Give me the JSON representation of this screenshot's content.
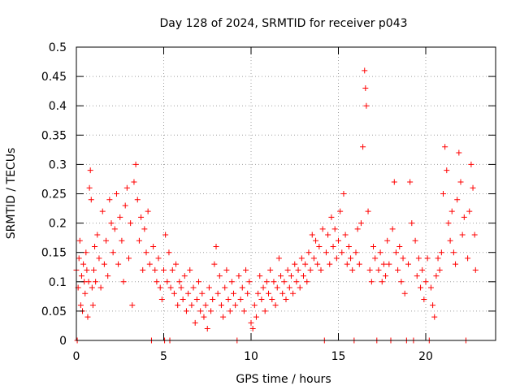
{
  "chart_data": {
    "type": "scatter",
    "title": "Day 128 of 2024, SRMTID for receiver p043",
    "xlabel": "GPS time / hours",
    "ylabel": "SRMTID / TECUs",
    "xlim": [
      0,
      24
    ],
    "ylim": [
      0,
      0.5
    ],
    "x_ticks": [
      0,
      5,
      10,
      15,
      20
    ],
    "x_tick_labels": [
      "0",
      "5",
      "10",
      "15",
      "20"
    ],
    "y_ticks": [
      0,
      0.05,
      0.1,
      0.15,
      0.2,
      0.25,
      0.3,
      0.35,
      0.4,
      0.45,
      0.5
    ],
    "y_tick_labels": [
      "0",
      "0.05",
      "0.1",
      "0.15",
      "0.2",
      "0.25",
      "0.3",
      "0.35",
      "0.4",
      "0.45",
      "0.5"
    ],
    "grid": true,
    "marker": "plus",
    "color": "#ff0000",
    "series": [
      {
        "name": "SRMTID",
        "points": [
          [
            0.0,
            0.12
          ],
          [
            0.05,
            0.0
          ],
          [
            0.1,
            0.09
          ],
          [
            0.15,
            0.14
          ],
          [
            0.2,
            0.17
          ],
          [
            0.25,
            0.06
          ],
          [
            0.3,
            0.11
          ],
          [
            0.35,
            0.05
          ],
          [
            0.4,
            0.13
          ],
          [
            0.45,
            0.1
          ],
          [
            0.5,
            0.08
          ],
          [
            0.55,
            0.15
          ],
          [
            0.6,
            0.12
          ],
          [
            0.65,
            0.04
          ],
          [
            0.7,
            0.1
          ],
          [
            0.75,
            0.26
          ],
          [
            0.8,
            0.29
          ],
          [
            0.85,
            0.24
          ],
          [
            0.9,
            0.09
          ],
          [
            0.95,
            0.06
          ],
          [
            1.0,
            0.12
          ],
          [
            1.05,
            0.16
          ],
          [
            1.1,
            0.1
          ],
          [
            1.2,
            0.18
          ],
          [
            1.3,
            0.14
          ],
          [
            1.4,
            0.09
          ],
          [
            1.5,
            0.22
          ],
          [
            1.6,
            0.13
          ],
          [
            1.7,
            0.17
          ],
          [
            1.8,
            0.11
          ],
          [
            1.9,
            0.24
          ],
          [
            2.0,
            0.2
          ],
          [
            2.1,
            0.15
          ],
          [
            2.2,
            0.19
          ],
          [
            2.3,
            0.25
          ],
          [
            2.4,
            0.13
          ],
          [
            2.5,
            0.21
          ],
          [
            2.6,
            0.17
          ],
          [
            2.7,
            0.1
          ],
          [
            2.8,
            0.23
          ],
          [
            2.9,
            0.26
          ],
          [
            3.0,
            0.14
          ],
          [
            3.1,
            0.2
          ],
          [
            3.2,
            0.06
          ],
          [
            3.3,
            0.27
          ],
          [
            3.4,
            0.3
          ],
          [
            3.5,
            0.24
          ],
          [
            3.6,
            0.17
          ],
          [
            3.7,
            0.21
          ],
          [
            3.8,
            0.12
          ],
          [
            3.9,
            0.19
          ],
          [
            4.0,
            0.15
          ],
          [
            4.1,
            0.22
          ],
          [
            4.2,
            0.13
          ],
          [
            4.3,
            0.0
          ],
          [
            4.4,
            0.16
          ],
          [
            4.5,
            0.12
          ],
          [
            4.6,
            0.1
          ],
          [
            4.7,
            0.14
          ],
          [
            4.8,
            0.09
          ],
          [
            4.9,
            0.07
          ],
          [
            5.0,
            0.12
          ],
          [
            5.05,
            0.0
          ],
          [
            5.1,
            0.18
          ],
          [
            5.2,
            0.1
          ],
          [
            5.3,
            0.15
          ],
          [
            5.35,
            0.0
          ],
          [
            5.4,
            0.09
          ],
          [
            5.5,
            0.12
          ],
          [
            5.6,
            0.08
          ],
          [
            5.7,
            0.13
          ],
          [
            5.8,
            0.06
          ],
          [
            5.9,
            0.1
          ],
          [
            6.0,
            0.09
          ],
          [
            6.1,
            0.07
          ],
          [
            6.2,
            0.11
          ],
          [
            6.3,
            0.05
          ],
          [
            6.4,
            0.08
          ],
          [
            6.5,
            0.12
          ],
          [
            6.6,
            0.06
          ],
          [
            6.7,
            0.09
          ],
          [
            6.8,
            0.03
          ],
          [
            6.9,
            0.07
          ],
          [
            7.0,
            0.1
          ],
          [
            7.1,
            0.05
          ],
          [
            7.2,
            0.08
          ],
          [
            7.3,
            0.04
          ],
          [
            7.4,
            0.06
          ],
          [
            7.5,
            0.02
          ],
          [
            7.6,
            0.09
          ],
          [
            7.7,
            0.05
          ],
          [
            7.8,
            0.07
          ],
          [
            7.9,
            0.13
          ],
          [
            8.0,
            0.16
          ],
          [
            8.1,
            0.08
          ],
          [
            8.2,
            0.11
          ],
          [
            8.3,
            0.06
          ],
          [
            8.4,
            0.04
          ],
          [
            8.5,
            0.09
          ],
          [
            8.6,
            0.12
          ],
          [
            8.7,
            0.07
          ],
          [
            8.8,
            0.05
          ],
          [
            8.9,
            0.1
          ],
          [
            9.0,
            0.08
          ],
          [
            9.1,
            0.06
          ],
          [
            9.2,
            0.0
          ],
          [
            9.3,
            0.11
          ],
          [
            9.4,
            0.07
          ],
          [
            9.5,
            0.09
          ],
          [
            9.6,
            0.05
          ],
          [
            9.7,
            0.12
          ],
          [
            9.8,
            0.08
          ],
          [
            9.9,
            0.1
          ],
          [
            10.0,
            0.03
          ],
          [
            10.1,
            0.02
          ],
          [
            10.2,
            0.06
          ],
          [
            10.3,
            0.04
          ],
          [
            10.4,
            0.08
          ],
          [
            10.5,
            0.11
          ],
          [
            10.6,
            0.07
          ],
          [
            10.7,
            0.09
          ],
          [
            10.8,
            0.05
          ],
          [
            10.9,
            0.1
          ],
          [
            11.0,
            0.08
          ],
          [
            11.1,
            0.12
          ],
          [
            11.2,
            0.07
          ],
          [
            11.3,
            0.1
          ],
          [
            11.4,
            0.06
          ],
          [
            11.5,
            0.09
          ],
          [
            11.6,
            0.14
          ],
          [
            11.7,
            0.11
          ],
          [
            11.8,
            0.08
          ],
          [
            11.9,
            0.1
          ],
          [
            12.0,
            0.07
          ],
          [
            12.1,
            0.12
          ],
          [
            12.2,
            0.09
          ],
          [
            12.3,
            0.11
          ],
          [
            12.4,
            0.08
          ],
          [
            12.5,
            0.13
          ],
          [
            12.6,
            0.1
          ],
          [
            12.7,
            0.12
          ],
          [
            12.8,
            0.09
          ],
          [
            12.9,
            0.14
          ],
          [
            13.0,
            0.11
          ],
          [
            13.1,
            0.13
          ],
          [
            13.2,
            0.1
          ],
          [
            13.3,
            0.15
          ],
          [
            13.4,
            0.12
          ],
          [
            13.5,
            0.18
          ],
          [
            13.6,
            0.14
          ],
          [
            13.7,
            0.17
          ],
          [
            13.8,
            0.13
          ],
          [
            13.9,
            0.16
          ],
          [
            14.0,
            0.12
          ],
          [
            14.1,
            0.19
          ],
          [
            14.2,
            0.0
          ],
          [
            14.3,
            0.15
          ],
          [
            14.4,
            0.18
          ],
          [
            14.5,
            0.13
          ],
          [
            14.6,
            0.21
          ],
          [
            14.7,
            0.16
          ],
          [
            14.8,
            0.19
          ],
          [
            14.9,
            0.14
          ],
          [
            15.0,
            0.17
          ],
          [
            15.1,
            0.22
          ],
          [
            15.2,
            0.15
          ],
          [
            15.3,
            0.25
          ],
          [
            15.4,
            0.18
          ],
          [
            15.5,
            0.13
          ],
          [
            15.6,
            0.16
          ],
          [
            15.7,
            0.14
          ],
          [
            15.8,
            0.12
          ],
          [
            15.9,
            0.0
          ],
          [
            16.0,
            0.15
          ],
          [
            16.1,
            0.19
          ],
          [
            16.2,
            0.13
          ],
          [
            16.3,
            0.2
          ],
          [
            16.4,
            0.33
          ],
          [
            16.5,
            0.46
          ],
          [
            16.55,
            0.43
          ],
          [
            16.6,
            0.4
          ],
          [
            16.7,
            0.22
          ],
          [
            16.8,
            0.12
          ],
          [
            16.9,
            0.1
          ],
          [
            17.0,
            0.16
          ],
          [
            17.1,
            0.14
          ],
          [
            17.2,
            0.0
          ],
          [
            17.3,
            0.12
          ],
          [
            17.4,
            0.15
          ],
          [
            17.5,
            0.1
          ],
          [
            17.6,
            0.13
          ],
          [
            17.7,
            0.11
          ],
          [
            17.8,
            0.17
          ],
          [
            17.9,
            0.13
          ],
          [
            18.0,
            0.0
          ],
          [
            18.1,
            0.19
          ],
          [
            18.2,
            0.27
          ],
          [
            18.3,
            0.15
          ],
          [
            18.4,
            0.12
          ],
          [
            18.5,
            0.16
          ],
          [
            18.6,
            0.1
          ],
          [
            18.7,
            0.14
          ],
          [
            18.8,
            0.08
          ],
          [
            18.9,
            0.0
          ],
          [
            19.0,
            0.13
          ],
          [
            19.1,
            0.27
          ],
          [
            19.2,
            0.2
          ],
          [
            19.3,
            0.0
          ],
          [
            19.4,
            0.17
          ],
          [
            19.5,
            0.11
          ],
          [
            19.6,
            0.14
          ],
          [
            19.7,
            0.09
          ],
          [
            19.8,
            0.12
          ],
          [
            19.9,
            0.07
          ],
          [
            20.0,
            0.1
          ],
          [
            20.1,
            0.14
          ],
          [
            20.2,
            0.0
          ],
          [
            20.3,
            0.09
          ],
          [
            20.4,
            0.06
          ],
          [
            20.5,
            0.04
          ],
          [
            20.6,
            0.11
          ],
          [
            20.7,
            0.14
          ],
          [
            20.8,
            0.12
          ],
          [
            20.9,
            0.15
          ],
          [
            21.0,
            0.25
          ],
          [
            21.1,
            0.33
          ],
          [
            21.2,
            0.29
          ],
          [
            21.3,
            0.2
          ],
          [
            21.4,
            0.17
          ],
          [
            21.5,
            0.22
          ],
          [
            21.6,
            0.15
          ],
          [
            21.7,
            0.13
          ],
          [
            21.8,
            0.24
          ],
          [
            21.9,
            0.32
          ],
          [
            22.0,
            0.27
          ],
          [
            22.1,
            0.18
          ],
          [
            22.2,
            0.21
          ],
          [
            22.3,
            0.0
          ],
          [
            22.4,
            0.14
          ],
          [
            22.5,
            0.22
          ],
          [
            22.6,
            0.3
          ],
          [
            22.7,
            0.26
          ],
          [
            22.8,
            0.18
          ],
          [
            22.85,
            0.12
          ]
        ]
      }
    ]
  }
}
